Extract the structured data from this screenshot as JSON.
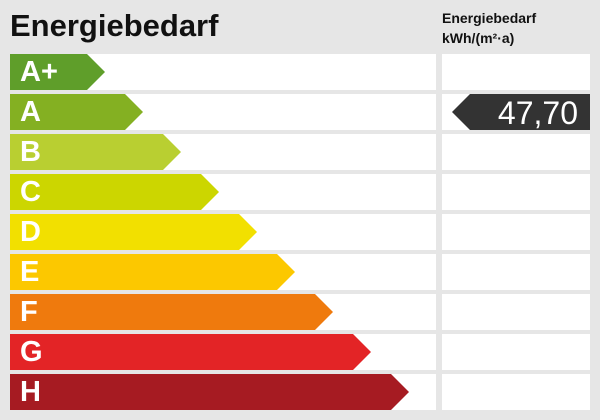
{
  "title": "Energiebedarf",
  "unit_line1": "Energiebedarf",
  "unit_line2": "kWh/(m²·a)",
  "classes": [
    {
      "label": "A+",
      "color": "#5f9e2a"
    },
    {
      "label": "A",
      "color": "#84b022"
    },
    {
      "label": "B",
      "color": "#b9cf31"
    },
    {
      "label": "C",
      "color": "#ccd600"
    },
    {
      "label": "D",
      "color": "#f2e000"
    },
    {
      "label": "E",
      "color": "#fcc800"
    },
    {
      "label": "F",
      "color": "#ef7a0d"
    },
    {
      "label": "G",
      "color": "#e32426"
    },
    {
      "label": "H",
      "color": "#a61b22"
    }
  ],
  "indicator": {
    "value": "47,70",
    "class": "A",
    "color": "#333333"
  }
}
